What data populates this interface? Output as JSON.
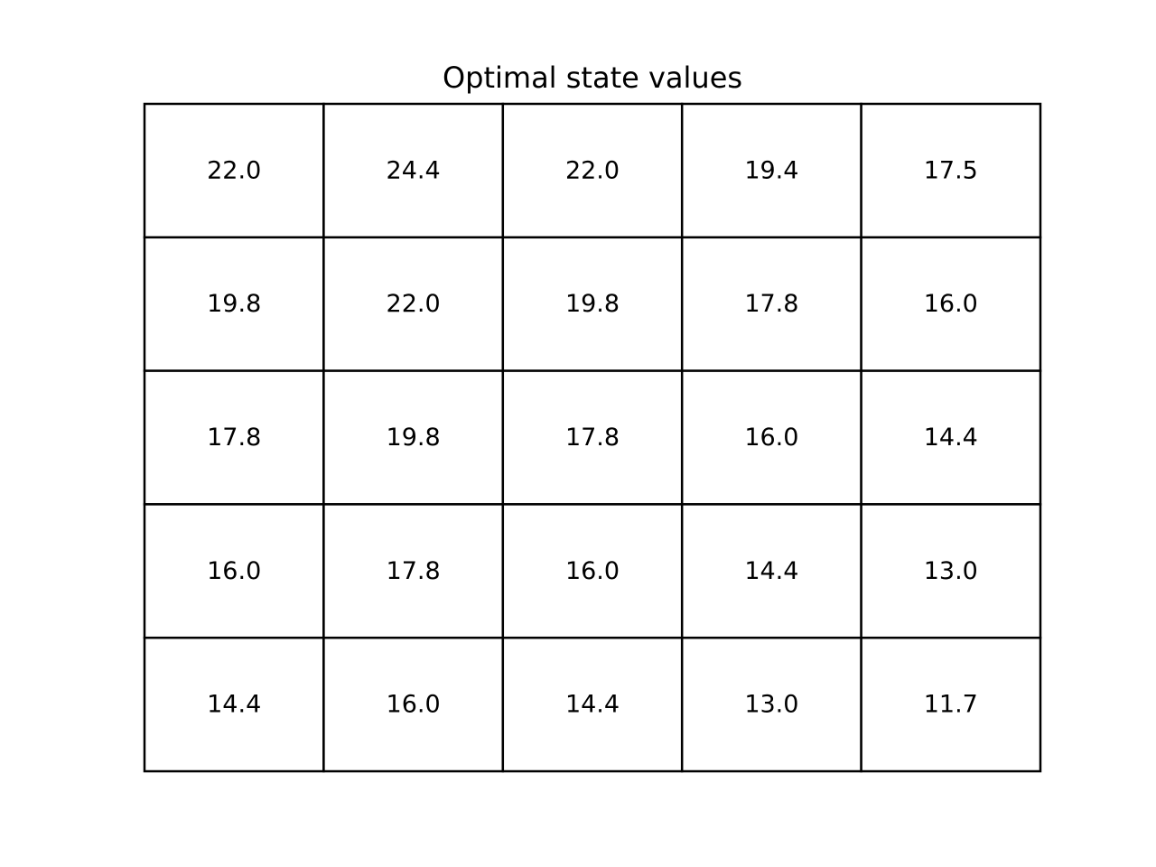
{
  "chart_data": {
    "type": "table",
    "title": "Optimal state values",
    "rows": [
      [
        "22.0",
        "24.4",
        "22.0",
        "19.4",
        "17.5"
      ],
      [
        "19.8",
        "22.0",
        "19.8",
        "17.8",
        "16.0"
      ],
      [
        "17.8",
        "19.8",
        "17.8",
        "16.0",
        "14.4"
      ],
      [
        "16.0",
        "17.8",
        "16.0",
        "14.4",
        "13.0"
      ],
      [
        "14.4",
        "16.0",
        "14.4",
        "13.0",
        "11.7"
      ]
    ],
    "grid": true
  },
  "colors": {
    "background": "#ffffff",
    "line": "#000000",
    "text": "#000000"
  }
}
